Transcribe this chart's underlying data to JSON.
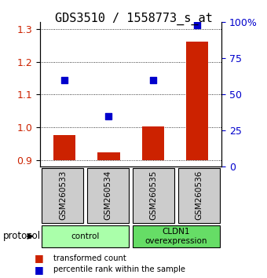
{
  "title": "GDS3510 / 1558773_s_at",
  "samples": [
    "GSM260533",
    "GSM260534",
    "GSM260535",
    "GSM260536"
  ],
  "bar_values": [
    0.976,
    0.924,
    1.002,
    1.262
  ],
  "dot_values_pct": [
    60,
    35,
    60,
    98
  ],
  "ylim_left": [
    0.88,
    1.32
  ],
  "ylim_right": [
    0,
    100
  ],
  "yticks_left": [
    0.9,
    1.0,
    1.1,
    1.2,
    1.3
  ],
  "yticks_right": [
    0,
    25,
    50,
    75,
    100
  ],
  "ytick_labels_right": [
    "0",
    "25",
    "50",
    "75",
    "100%"
  ],
  "bar_color": "#cc2200",
  "dot_color": "#0000cc",
  "bar_baseline": 0.9,
  "groups": [
    {
      "label": "control",
      "samples": [
        0,
        1
      ],
      "color": "#aaffaa"
    },
    {
      "label": "CLDN1\noverexpression",
      "samples": [
        2,
        3
      ],
      "color": "#66dd66"
    }
  ],
  "protocol_label": "protocol",
  "legend_bar_label": "transformed count",
  "legend_dot_label": "percentile rank within the sample",
  "title_fontsize": 11,
  "tick_fontsize": 9,
  "label_fontsize": 9
}
